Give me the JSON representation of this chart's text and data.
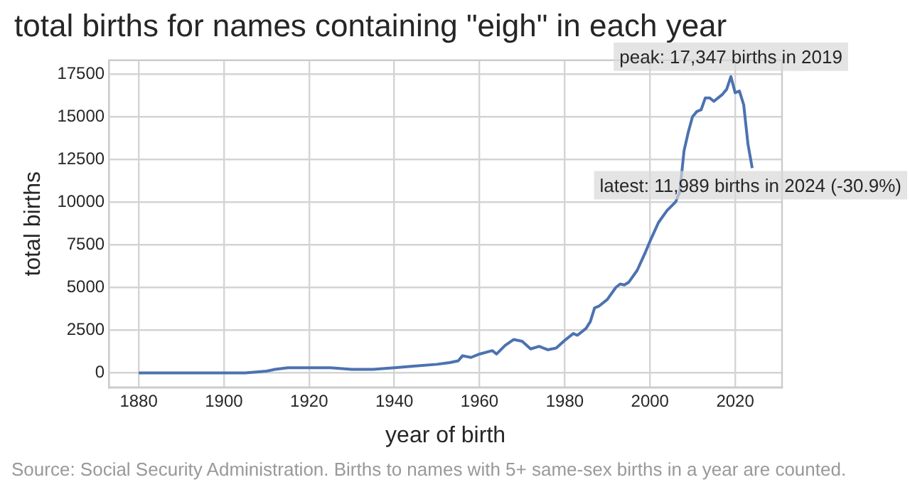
{
  "chart_data": {
    "type": "line",
    "title": "total births for names containing \"eigh\" in each year",
    "xlabel": "year of birth",
    "ylabel": "total births",
    "x": [
      1880,
      1885,
      1890,
      1895,
      1900,
      1905,
      1910,
      1912,
      1915,
      1920,
      1925,
      1930,
      1935,
      1940,
      1945,
      1950,
      1953,
      1955,
      1956,
      1958,
      1960,
      1963,
      1964,
      1966,
      1968,
      1970,
      1972,
      1974,
      1976,
      1978,
      1980,
      1982,
      1983,
      1985,
      1986,
      1987,
      1988,
      1990,
      1992,
      1993,
      1994,
      1995,
      1997,
      1999,
      2000,
      2002,
      2004,
      2006,
      2007,
      2008,
      2009,
      2010,
      2011,
      2012,
      2013,
      2014,
      2015,
      2016,
      2017,
      2018,
      2019,
      2020,
      2021,
      2022,
      2023,
      2024
    ],
    "series": [
      {
        "color": "#4c72b0",
        "values": [
          0,
          0,
          0,
          0,
          0,
          0,
          100,
          200,
          300,
          300,
          300,
          200,
          200,
          300,
          400,
          500,
          600,
          700,
          1000,
          900,
          1100,
          1300,
          1100,
          1600,
          1950,
          1850,
          1400,
          1550,
          1350,
          1450,
          1900,
          2300,
          2200,
          2600,
          3000,
          3800,
          3900,
          4300,
          5000,
          5200,
          5150,
          5300,
          6000,
          7100,
          7700,
          8800,
          9500,
          10000,
          10600,
          13000,
          14100,
          15000,
          15300,
          15400,
          16100,
          16100,
          15900,
          16100,
          16300,
          16600,
          17347,
          16400,
          16500,
          15700,
          13400,
          11989
        ]
      }
    ],
    "xlim": [
      1873,
      2031
    ],
    "xticks": [
      1880,
      1900,
      1920,
      1940,
      1960,
      1980,
      2000,
      2020
    ],
    "ylim": [
      -850,
      18300
    ],
    "yticks": [
      0,
      2500,
      5000,
      7500,
      10000,
      12500,
      15000,
      17500
    ],
    "grid": true,
    "legend": false,
    "marker": "none",
    "line_style": "solid",
    "annotations": [
      {
        "text": "peak: 17,347 births in 2019",
        "x": 2019,
        "y": 17347
      },
      {
        "text": "latest: 11,989 births in 2024 (-30.9%)",
        "x": 2024,
        "y": 11989
      },
      "Source: Social Security Administration. Births to names with 5+ same-sex births in a year are counted."
    ]
  }
}
